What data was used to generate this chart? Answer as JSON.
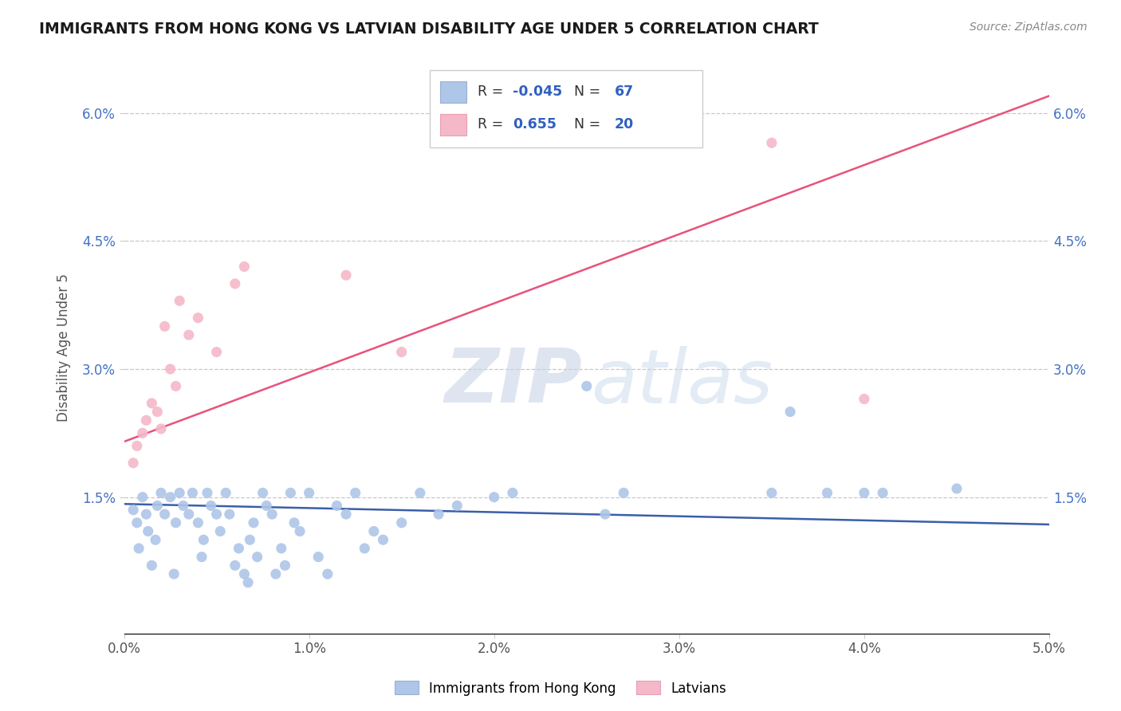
{
  "title": "IMMIGRANTS FROM HONG KONG VS LATVIAN DISABILITY AGE UNDER 5 CORRELATION CHART",
  "source": "Source: ZipAtlas.com",
  "ylabel": "Disability Age Under 5",
  "xlim": [
    0.0,
    5.0
  ],
  "ylim": [
    -0.1,
    6.6
  ],
  "xtick_labels": [
    "0.0%",
    "1.0%",
    "2.0%",
    "3.0%",
    "4.0%",
    "5.0%"
  ],
  "xtick_vals": [
    0.0,
    1.0,
    2.0,
    3.0,
    4.0,
    5.0
  ],
  "ytick_labels": [
    "1.5%",
    "3.0%",
    "4.5%",
    "6.0%"
  ],
  "ytick_vals": [
    1.5,
    3.0,
    4.5,
    6.0
  ],
  "r_blue": -0.045,
  "n_blue": 67,
  "r_pink": 0.655,
  "n_pink": 20,
  "blue_color": "#aec6e8",
  "pink_color": "#f4b8c8",
  "blue_line_color": "#3a5fa8",
  "pink_line_color": "#e8527a",
  "legend_label_blue": "Immigrants from Hong Kong",
  "legend_label_pink": "Latvians",
  "blue_dots": [
    [
      0.05,
      1.35
    ],
    [
      0.07,
      1.2
    ],
    [
      0.08,
      0.9
    ],
    [
      0.1,
      1.5
    ],
    [
      0.12,
      1.3
    ],
    [
      0.13,
      1.1
    ],
    [
      0.15,
      0.7
    ],
    [
      0.17,
      1.0
    ],
    [
      0.18,
      1.4
    ],
    [
      0.2,
      1.55
    ],
    [
      0.22,
      1.3
    ],
    [
      0.25,
      1.5
    ],
    [
      0.27,
      0.6
    ],
    [
      0.28,
      1.2
    ],
    [
      0.3,
      1.55
    ],
    [
      0.32,
      1.4
    ],
    [
      0.35,
      1.3
    ],
    [
      0.37,
      1.55
    ],
    [
      0.4,
      1.2
    ],
    [
      0.42,
      0.8
    ],
    [
      0.43,
      1.0
    ],
    [
      0.45,
      1.55
    ],
    [
      0.47,
      1.4
    ],
    [
      0.5,
      1.3
    ],
    [
      0.52,
      1.1
    ],
    [
      0.55,
      1.55
    ],
    [
      0.57,
      1.3
    ],
    [
      0.6,
      0.7
    ],
    [
      0.62,
      0.9
    ],
    [
      0.65,
      0.6
    ],
    [
      0.67,
      0.5
    ],
    [
      0.68,
      1.0
    ],
    [
      0.7,
      1.2
    ],
    [
      0.72,
      0.8
    ],
    [
      0.75,
      1.55
    ],
    [
      0.77,
      1.4
    ],
    [
      0.8,
      1.3
    ],
    [
      0.82,
      0.6
    ],
    [
      0.85,
      0.9
    ],
    [
      0.87,
      0.7
    ],
    [
      0.9,
      1.55
    ],
    [
      0.92,
      1.2
    ],
    [
      0.95,
      1.1
    ],
    [
      1.0,
      1.55
    ],
    [
      1.05,
      0.8
    ],
    [
      1.1,
      0.6
    ],
    [
      1.15,
      1.4
    ],
    [
      1.2,
      1.3
    ],
    [
      1.25,
      1.55
    ],
    [
      1.3,
      0.9
    ],
    [
      1.35,
      1.1
    ],
    [
      1.4,
      1.0
    ],
    [
      1.5,
      1.2
    ],
    [
      1.6,
      1.55
    ],
    [
      1.7,
      1.3
    ],
    [
      1.8,
      1.4
    ],
    [
      2.0,
      1.5
    ],
    [
      2.1,
      1.55
    ],
    [
      2.5,
      2.8
    ],
    [
      2.6,
      1.3
    ],
    [
      2.7,
      1.55
    ],
    [
      3.5,
      1.55
    ],
    [
      3.6,
      2.5
    ],
    [
      3.8,
      1.55
    ],
    [
      4.0,
      1.55
    ],
    [
      4.1,
      1.55
    ],
    [
      4.5,
      1.6
    ]
  ],
  "pink_dots": [
    [
      0.05,
      1.9
    ],
    [
      0.07,
      2.1
    ],
    [
      0.1,
      2.25
    ],
    [
      0.12,
      2.4
    ],
    [
      0.15,
      2.6
    ],
    [
      0.18,
      2.5
    ],
    [
      0.2,
      2.3
    ],
    [
      0.22,
      3.5
    ],
    [
      0.25,
      3.0
    ],
    [
      0.28,
      2.8
    ],
    [
      0.3,
      3.8
    ],
    [
      0.35,
      3.4
    ],
    [
      0.4,
      3.6
    ],
    [
      0.5,
      3.2
    ],
    [
      0.6,
      4.0
    ],
    [
      0.65,
      4.2
    ],
    [
      1.2,
      4.1
    ],
    [
      1.5,
      3.2
    ],
    [
      3.5,
      5.65
    ],
    [
      4.0,
      2.65
    ]
  ],
  "watermark_zip": "ZIP",
  "watermark_atlas": "atlas",
  "background_color": "#ffffff",
  "grid_color": "#c8c8c8"
}
